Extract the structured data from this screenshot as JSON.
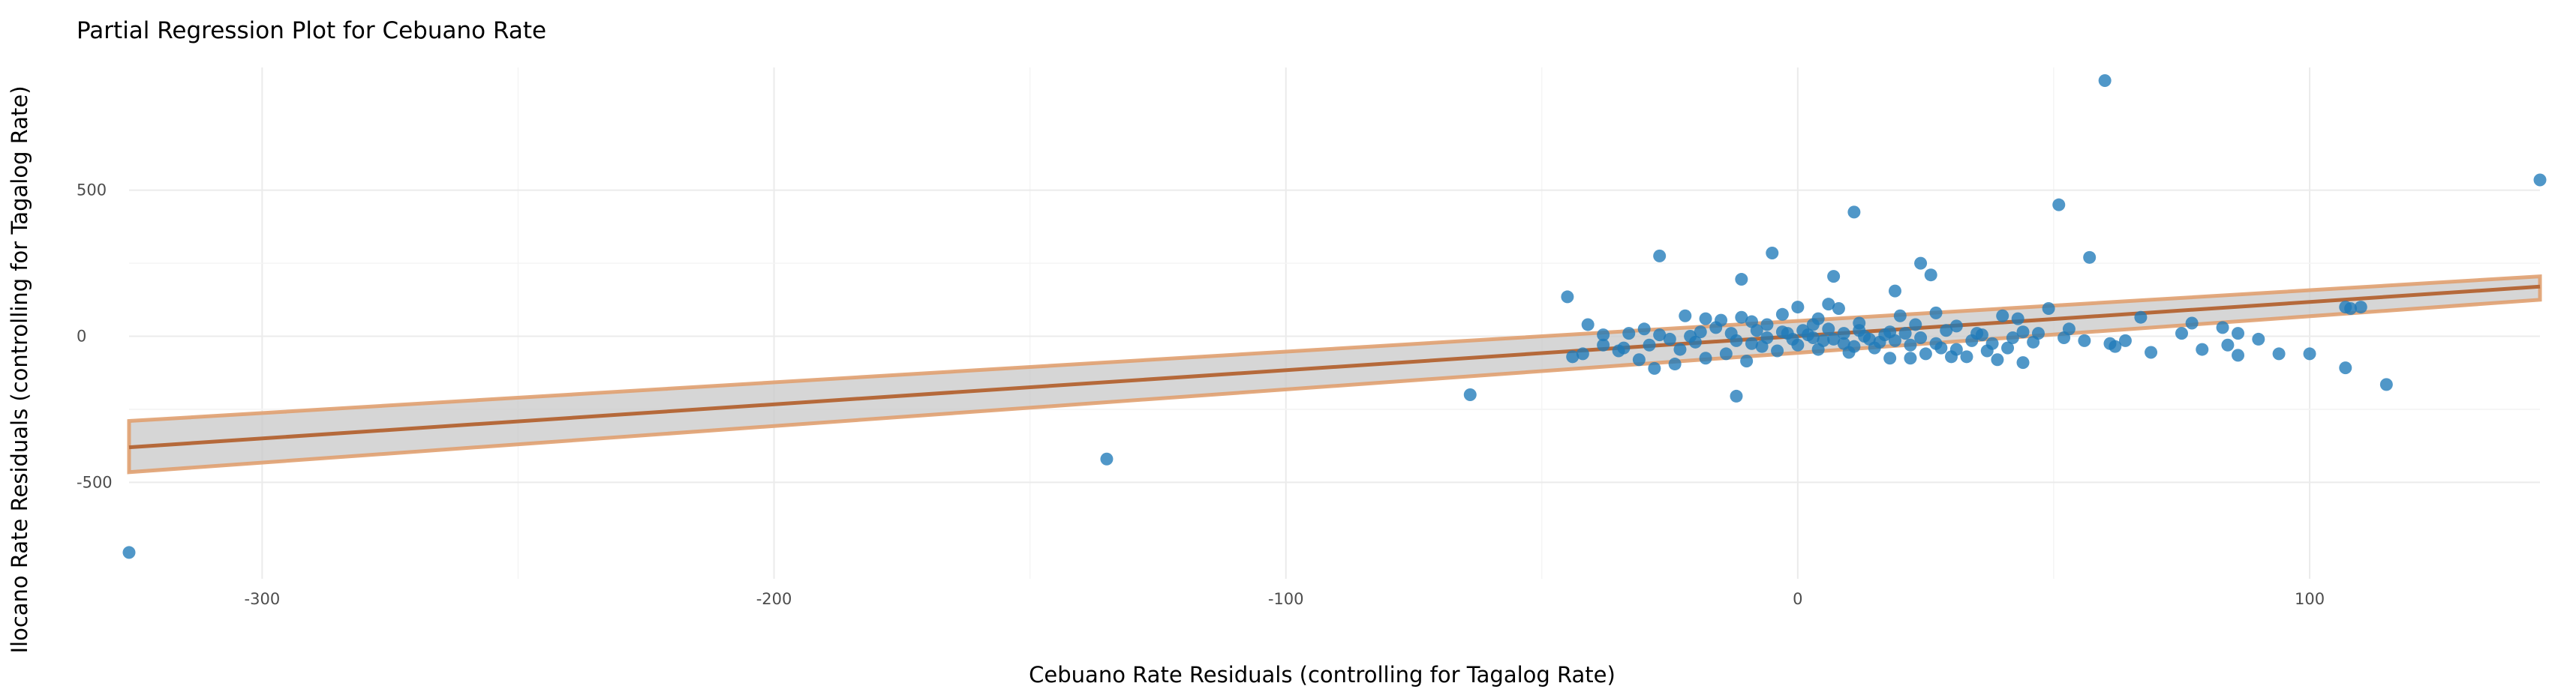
{
  "chart_data": {
    "type": "scatter",
    "title": "Partial Regression Plot for Cebuano Rate",
    "xlabel": "Cebuano Rate Residuals (controlling for Tagalog Rate)",
    "ylabel": "Ilocano Rate Residuals (controlling for Tagalog Rate)",
    "xlim": [
      -326,
      145
    ],
    "ylim": [
      -830,
      920
    ],
    "x_ticks": [
      -300,
      -200,
      -100,
      0,
      100
    ],
    "y_ticks": [
      -500,
      0,
      500
    ],
    "grid": true,
    "legend": "none",
    "colors": {
      "points": "#1f7ab8",
      "fit_line": "#b5693a",
      "band_fill": "#c8c8c8",
      "band_edge": "#e0a070",
      "grid": "#ebebeb"
    },
    "fit_line": {
      "x": [
        -326,
        145
      ],
      "y": [
        -380,
        170
      ]
    },
    "confidence_band": {
      "x": [
        -326,
        145
      ],
      "lower": [
        -465,
        125
      ],
      "upper": [
        -290,
        205
      ]
    },
    "points": [
      {
        "x": -326,
        "y": -740
      },
      {
        "x": -135,
        "y": -420
      },
      {
        "x": -64,
        "y": -200
      },
      {
        "x": 60,
        "y": 875
      },
      {
        "x": 145,
        "y": 535
      },
      {
        "x": 51,
        "y": 450
      },
      {
        "x": 11,
        "y": 425
      },
      {
        "x": -5,
        "y": 285
      },
      {
        "x": -27,
        "y": 275
      },
      {
        "x": 57,
        "y": 270
      },
      {
        "x": 24,
        "y": 250
      },
      {
        "x": 26,
        "y": 210
      },
      {
        "x": 7,
        "y": 205
      },
      {
        "x": -11,
        "y": 195
      },
      {
        "x": 19,
        "y": 155
      },
      {
        "x": -45,
        "y": 135
      },
      {
        "x": 110,
        "y": 100
      },
      {
        "x": 49,
        "y": 95
      },
      {
        "x": 6,
        "y": 110
      },
      {
        "x": 8,
        "y": 95
      },
      {
        "x": 0,
        "y": 100
      },
      {
        "x": -3,
        "y": 75
      },
      {
        "x": 27,
        "y": 80
      },
      {
        "x": 20,
        "y": 70
      },
      {
        "x": 43,
        "y": 60
      },
      {
        "x": 67,
        "y": 65
      },
      {
        "x": 77,
        "y": 45
      },
      {
        "x": 83,
        "y": 30
      },
      {
        "x": 40,
        "y": 70
      },
      {
        "x": -18,
        "y": 60
      },
      {
        "x": -22,
        "y": 70
      },
      {
        "x": -15,
        "y": 55
      },
      {
        "x": -9,
        "y": 50
      },
      {
        "x": 3,
        "y": 40
      },
      {
        "x": -30,
        "y": 25
      },
      {
        "x": -33,
        "y": 10
      },
      {
        "x": -38,
        "y": 5
      },
      {
        "x": -41,
        "y": 40
      },
      {
        "x": 12,
        "y": 20
      },
      {
        "x": 18,
        "y": 15
      },
      {
        "x": 29,
        "y": 20
      },
      {
        "x": 35,
        "y": 10
      },
      {
        "x": 44,
        "y": 15
      },
      {
        "x": -25,
        "y": -10
      },
      {
        "x": -20,
        "y": -20
      },
      {
        "x": -12,
        "y": -15
      },
      {
        "x": -6,
        "y": -5
      },
      {
        "x": -2,
        "y": 10
      },
      {
        "x": 2,
        "y": 5
      },
      {
        "x": 5,
        "y": -15
      },
      {
        "x": 9,
        "y": -25
      },
      {
        "x": 14,
        "y": -10
      },
      {
        "x": 16,
        "y": -20
      },
      {
        "x": 22,
        "y": -30
      },
      {
        "x": 28,
        "y": -40
      },
      {
        "x": 31,
        "y": -45
      },
      {
        "x": 38,
        "y": -25
      },
      {
        "x": 41,
        "y": -40
      },
      {
        "x": 47,
        "y": 10
      },
      {
        "x": 56,
        "y": -15
      },
      {
        "x": 61,
        "y": -25
      },
      {
        "x": 64,
        "y": -15
      },
      {
        "x": 69,
        "y": -55
      },
      {
        "x": 75,
        "y": 10
      },
      {
        "x": 79,
        "y": -45
      },
      {
        "x": 84,
        "y": -30
      },
      {
        "x": 86,
        "y": 10
      },
      {
        "x": 86,
        "y": -65
      },
      {
        "x": 90,
        "y": -10
      },
      {
        "x": 94,
        "y": -60
      },
      {
        "x": 100,
        "y": -60
      },
      {
        "x": 108,
        "y": 95
      },
      {
        "x": 107,
        "y": 100
      },
      {
        "x": 107,
        "y": -108
      },
      {
        "x": 115,
        "y": -165
      },
      {
        "x": -42,
        "y": -60
      },
      {
        "x": -38,
        "y": -30
      },
      {
        "x": -35,
        "y": -50
      },
      {
        "x": -31,
        "y": -80
      },
      {
        "x": -28,
        "y": -110
      },
      {
        "x": -18,
        "y": -75
      },
      {
        "x": -14,
        "y": -60
      },
      {
        "x": -10,
        "y": -85
      },
      {
        "x": -7,
        "y": -35
      },
      {
        "x": -4,
        "y": -50
      },
      {
        "x": 0,
        "y": -30
      },
      {
        "x": 4,
        "y": -45
      },
      {
        "x": 10,
        "y": -55
      },
      {
        "x": 15,
        "y": -40
      },
      {
        "x": 25,
        "y": -60
      },
      {
        "x": 33,
        "y": -70
      },
      {
        "x": 39,
        "y": -80
      },
      {
        "x": 44,
        "y": -90
      },
      {
        "x": -12,
        "y": -205
      },
      {
        "x": 22,
        "y": -75
      },
      {
        "x": 30,
        "y": -70
      },
      {
        "x": 18,
        "y": -75
      },
      {
        "x": -24,
        "y": -95
      },
      {
        "x": -34,
        "y": -40
      },
      {
        "x": -44,
        "y": -70
      },
      {
        "x": -16,
        "y": 30
      },
      {
        "x": -8,
        "y": 20
      },
      {
        "x": 1,
        "y": 20
      },
      {
        "x": 6,
        "y": 25
      },
      {
        "x": 12,
        "y": 45
      },
      {
        "x": -27,
        "y": 5
      },
      {
        "x": -21,
        "y": 0
      },
      {
        "x": -19,
        "y": 15
      },
      {
        "x": -13,
        "y": 10
      },
      {
        "x": -1,
        "y": -10
      },
      {
        "x": 3,
        "y": -5
      },
      {
        "x": 7,
        "y": -10
      },
      {
        "x": 13,
        "y": 0
      },
      {
        "x": 17,
        "y": 5
      },
      {
        "x": 21,
        "y": 10
      },
      {
        "x": 24,
        "y": -5
      },
      {
        "x": 34,
        "y": -15
      },
      {
        "x": 36,
        "y": 5
      },
      {
        "x": 46,
        "y": -20
      },
      {
        "x": 52,
        "y": -5
      },
      {
        "x": -3,
        "y": 15
      },
      {
        "x": 9,
        "y": 10
      },
      {
        "x": 19,
        "y": -15
      },
      {
        "x": -29,
        "y": -30
      },
      {
        "x": -23,
        "y": -45
      },
      {
        "x": -9,
        "y": -25
      },
      {
        "x": 11,
        "y": -35
      },
      {
        "x": 27,
        "y": -25
      },
      {
        "x": 37,
        "y": -50
      },
      {
        "x": 42,
        "y": -5
      },
      {
        "x": 53,
        "y": 25
      },
      {
        "x": 62,
        "y": -35
      },
      {
        "x": -6,
        "y": 40
      },
      {
        "x": 4,
        "y": 60
      },
      {
        "x": 23,
        "y": 40
      },
      {
        "x": 31,
        "y": 35
      },
      {
        "x": -11,
        "y": 65
      }
    ]
  }
}
